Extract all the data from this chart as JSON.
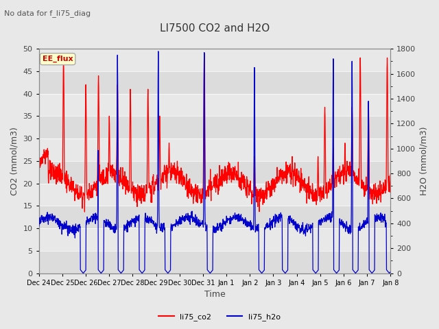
{
  "title": "LI7500 CO2 and H2O",
  "subtitle": "No data for f_li75_diag",
  "xlabel": "Time",
  "ylabel_left": "CO2 (mmol/m3)",
  "ylabel_right": "H2O (mmol/m3)",
  "legend_label": "EE_flux",
  "series1_label": "li75_co2",
  "series2_label": "li75_h2o",
  "co2_color": "#ff0000",
  "h2o_color": "#0000cc",
  "ylim_left": [
    0,
    50
  ],
  "ylim_right": [
    0,
    1800
  ],
  "yticks_left": [
    0,
    5,
    10,
    15,
    20,
    25,
    30,
    35,
    40,
    45,
    50
  ],
  "yticks_right_major": [
    0,
    200,
    400,
    600,
    800,
    1000,
    1200,
    1400,
    1600,
    1800
  ],
  "yticks_right_minor": [
    100,
    300,
    500,
    700,
    900,
    1100,
    1300,
    1500,
    1700
  ],
  "xtick_labels": [
    "Dec 24",
    "Dec 25",
    "Dec 26",
    "Dec 27",
    "Dec 28",
    "Dec 29",
    "Dec 30",
    "Dec 31",
    "Jan 1",
    "Jan 2",
    "Jan 3",
    "Jan 4",
    "Jan 5",
    "Jan 6",
    "Jan 7",
    "Jan 8"
  ],
  "bg_color": "#e8e8e8",
  "band_colors": [
    "#e0e0e0",
    "#d0d0d0"
  ],
  "grid_line_color": "#c8c8c8",
  "title_fontsize": 11,
  "label_fontsize": 9,
  "tick_fontsize": 8,
  "subtitle_fontsize": 8
}
